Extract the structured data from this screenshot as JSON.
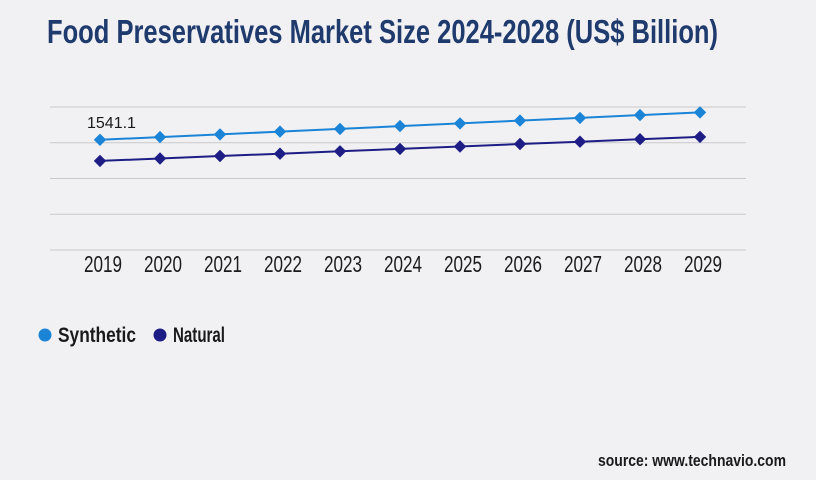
{
  "page": {
    "background": "#f1f1f4",
    "grid_color": "#c9c9cc",
    "text_color": "#1a1a1a"
  },
  "header": {
    "title": "Food Preservatives Market Size 2024-2028 (US$ Billion)",
    "color": "#1f3a6d"
  },
  "footer": {
    "source_text": "source: www.technavio.com"
  },
  "legend": {
    "items": [
      {
        "label": "Synthetic",
        "color": "#1b84d6"
      },
      {
        "label": "Natural",
        "color": "#1d1d85"
      }
    ]
  },
  "chart_data": {
    "type": "line",
    "title": "Food Preservatives Market Size 2024-2028 (US$ Billion)",
    "categories": [
      "2019",
      "2020",
      "2021",
      "2022",
      "2023",
      "2024",
      "2025",
      "2026",
      "2027",
      "2028",
      "2029"
    ],
    "series": [
      {
        "name": "Synthetic",
        "color": "#1b84d6",
        "marker": "diamond",
        "values": [
          1541.1,
          1579,
          1617,
          1656,
          1694,
          1733,
          1771,
          1810,
          1848,
          1887,
          1925
        ]
      },
      {
        "name": "Natural",
        "color": "#1d1d85",
        "marker": "diamond",
        "values": [
          1246,
          1280,
          1314,
          1347,
          1381,
          1414,
          1448,
          1482,
          1515,
          1549,
          1582
        ]
      }
    ],
    "data_labels": [
      {
        "series": "Synthetic",
        "category": "2019",
        "text": "1541.1"
      }
    ],
    "xlabel": "",
    "ylabel": "",
    "ylim": [
      0,
      2000
    ],
    "gridline_values": [
      0,
      500,
      1000,
      1500,
      2000
    ],
    "grid": true,
    "y_axis_labels_visible": false,
    "legend_position": "bottom-left",
    "note": "Only the 1541.1 value is labeled in the chart; all other series values are estimated from gridline positions."
  }
}
